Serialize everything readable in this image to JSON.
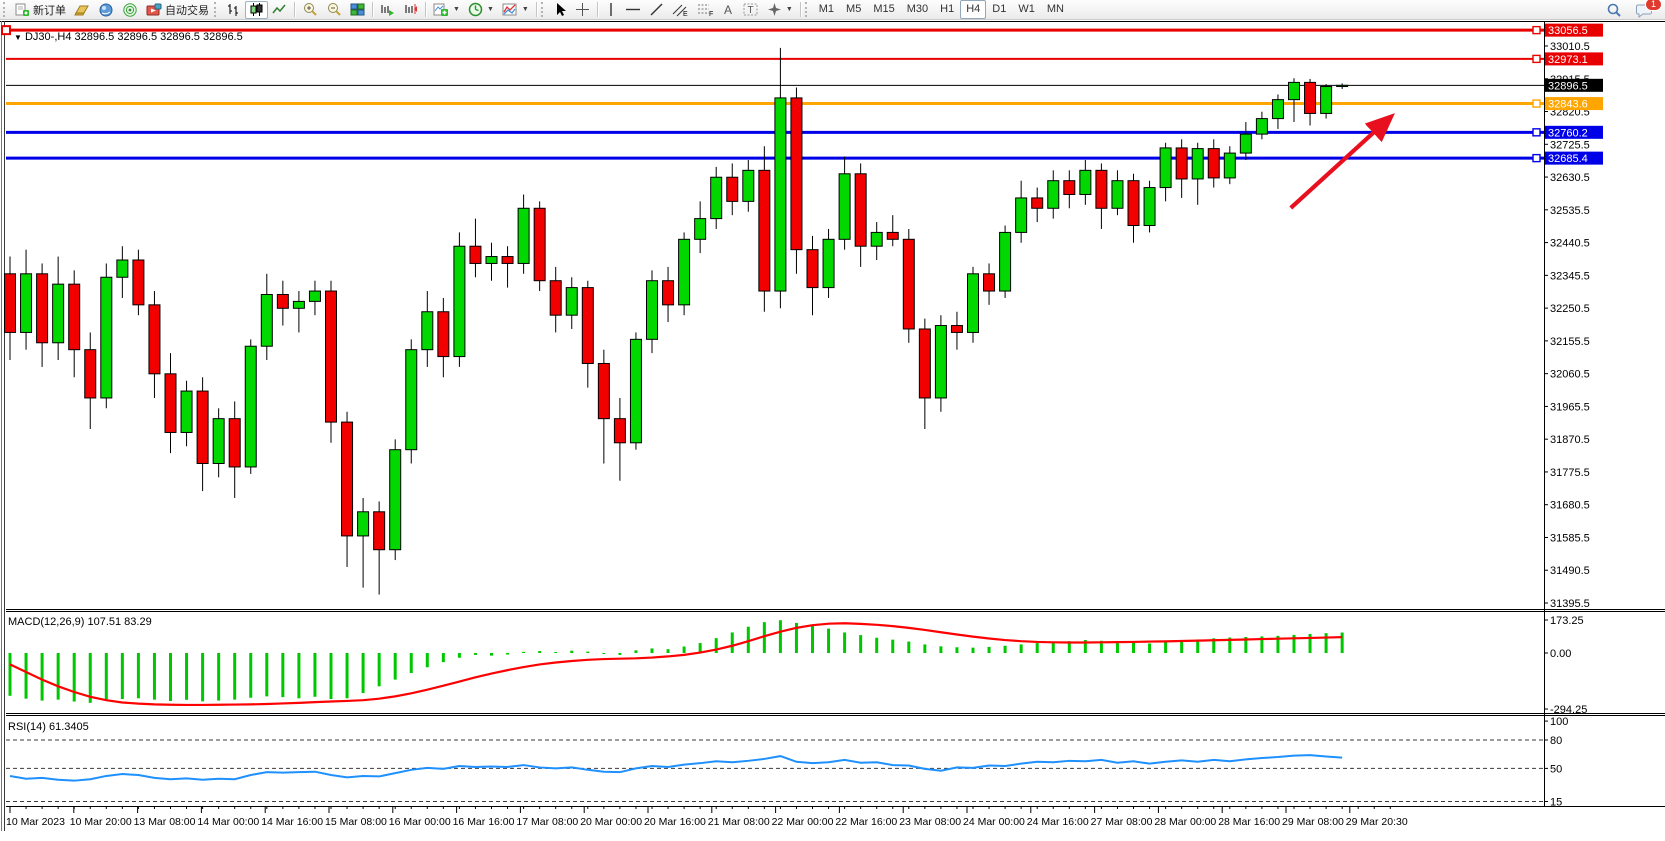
{
  "toolbar": {
    "new_order_label": "新订单",
    "auto_trading_label": "自动交易",
    "timeframes": [
      "M1",
      "M5",
      "M15",
      "M30",
      "H1",
      "H4",
      "D1",
      "W1",
      "MN"
    ],
    "active_timeframe": "H4",
    "notification_count": "1"
  },
  "chart": {
    "symbol_tf": "DJ30-,H4",
    "ohlc": "32896.5 32896.5 32896.5 32896.5",
    "dropdown_glyph": "▼"
  },
  "indicators": {
    "macd_label": "MACD(12,26,9) 107.51 83.29",
    "rsi_label": "RSI(14) 61.3405"
  },
  "chart_data": [
    {
      "type": "candlestick",
      "title": "DJ30- H4",
      "up_color": "#00D800",
      "down_color": "#F20000",
      "wick_color": "#000000",
      "y_ticks": [
        33010.5,
        32915.5,
        32820.5,
        32725.5,
        32630.5,
        32535.5,
        32440.5,
        32345.5,
        32250.5,
        32155.5,
        32060.5,
        31965.5,
        31870.5,
        31775.5,
        31680.5,
        31585.5,
        31490.5,
        31395.5
      ],
      "ylim": [
        31382,
        33080
      ],
      "price_lines": [
        {
          "price": 33056.5,
          "label": "33056.5",
          "color": "#E80000",
          "width": 3
        },
        {
          "price": 32973.1,
          "label": "32973.1",
          "color": "#E80000",
          "width": 2
        },
        {
          "price": 32896.5,
          "label": "32896.5",
          "color": "#000000",
          "width": 1,
          "current": true
        },
        {
          "price": 32843.6,
          "label": "32843.6",
          "color": "#FFA500",
          "width": 3
        },
        {
          "price": 32760.2,
          "label": "32760.2",
          "color": "#0000E8",
          "width": 3
        },
        {
          "price": 32685.4,
          "label": "32685.4",
          "color": "#0000E8",
          "width": 3
        }
      ],
      "candles": [
        [
          32350,
          32400,
          32100,
          32180
        ],
        [
          32180,
          32420,
          32130,
          32350
        ],
        [
          32350,
          32380,
          32080,
          32150
        ],
        [
          32150,
          32400,
          32100,
          32320
        ],
        [
          32320,
          32360,
          32050,
          32130
        ],
        [
          32130,
          32180,
          31900,
          31990
        ],
        [
          31990,
          32380,
          31960,
          32340
        ],
        [
          32340,
          32430,
          32280,
          32390
        ],
        [
          32390,
          32420,
          32230,
          32260
        ],
        [
          32260,
          32300,
          31990,
          32060
        ],
        [
          32060,
          32120,
          31830,
          31890
        ],
        [
          31890,
          32040,
          31850,
          32010
        ],
        [
          32010,
          32050,
          31720,
          31800
        ],
        [
          31800,
          31960,
          31760,
          31930
        ],
        [
          31930,
          31980,
          31700,
          31790
        ],
        [
          31790,
          32160,
          31770,
          32140
        ],
        [
          32140,
          32350,
          32100,
          32290
        ],
        [
          32290,
          32330,
          32200,
          32250
        ],
        [
          32250,
          32300,
          32180,
          32270
        ],
        [
          32270,
          32330,
          32230,
          32300
        ],
        [
          32300,
          32330,
          31860,
          31920
        ],
        [
          31920,
          31950,
          31500,
          31590
        ],
        [
          31590,
          31700,
          31440,
          31660
        ],
        [
          31660,
          31690,
          31420,
          31550
        ],
        [
          31550,
          31870,
          31520,
          31840
        ],
        [
          31840,
          32160,
          31800,
          32130
        ],
        [
          32130,
          32300,
          32080,
          32240
        ],
        [
          32240,
          32280,
          32050,
          32110
        ],
        [
          32110,
          32470,
          32080,
          32430
        ],
        [
          32430,
          32510,
          32340,
          32380
        ],
        [
          32380,
          32440,
          32330,
          32400
        ],
        [
          32400,
          32430,
          32310,
          32380
        ],
        [
          32380,
          32580,
          32350,
          32540
        ],
        [
          32540,
          32560,
          32300,
          32330
        ],
        [
          32330,
          32370,
          32180,
          32230
        ],
        [
          32230,
          32340,
          32190,
          32310
        ],
        [
          32310,
          32330,
          32020,
          32090
        ],
        [
          32090,
          32130,
          31800,
          31930
        ],
        [
          31930,
          31990,
          31750,
          31860
        ],
        [
          31860,
          32180,
          31840,
          32160
        ],
        [
          32160,
          32360,
          32120,
          32330
        ],
        [
          32330,
          32370,
          32210,
          32260
        ],
        [
          32260,
          32470,
          32230,
          32450
        ],
        [
          32450,
          32560,
          32410,
          32510
        ],
        [
          32510,
          32660,
          32480,
          32630
        ],
        [
          32630,
          32670,
          32520,
          32560
        ],
        [
          32560,
          32680,
          32530,
          32650
        ],
        [
          32650,
          32720,
          32240,
          32300
        ],
        [
          32300,
          33005,
          32250,
          32860
        ],
        [
          32860,
          32890,
          32350,
          32420
        ],
        [
          32420,
          32460,
          32230,
          32310
        ],
        [
          32310,
          32480,
          32280,
          32450
        ],
        [
          32450,
          32690,
          32420,
          32640
        ],
        [
          32640,
          32670,
          32370,
          32430
        ],
        [
          32430,
          32500,
          32390,
          32470
        ],
        [
          32470,
          32520,
          32430,
          32450
        ],
        [
          32450,
          32480,
          32150,
          32190
        ],
        [
          32190,
          32220,
          31900,
          31990
        ],
        [
          31990,
          32230,
          31950,
          32200
        ],
        [
          32200,
          32240,
          32130,
          32180
        ],
        [
          32180,
          32370,
          32150,
          32350
        ],
        [
          32350,
          32380,
          32260,
          32300
        ],
        [
          32300,
          32490,
          32280,
          32470
        ],
        [
          32470,
          32620,
          32440,
          32570
        ],
        [
          32570,
          32600,
          32500,
          32540
        ],
        [
          32540,
          32650,
          32510,
          32620
        ],
        [
          32620,
          32650,
          32540,
          32580
        ],
        [
          32580,
          32680,
          32550,
          32650
        ],
        [
          32650,
          32670,
          32480,
          32540
        ],
        [
          32540,
          32650,
          32520,
          32620
        ],
        [
          32620,
          32640,
          32440,
          32490
        ],
        [
          32490,
          32620,
          32470,
          32600
        ],
        [
          32600,
          32730,
          32560,
          32715
        ],
        [
          32715,
          32740,
          32570,
          32625
        ],
        [
          32625,
          32730,
          32550,
          32713
        ],
        [
          32713,
          32740,
          32600,
          32628
        ],
        [
          32628,
          32720,
          32610,
          32700
        ],
        [
          32700,
          32790,
          32680,
          32755
        ],
        [
          32755,
          32820,
          32740,
          32800
        ],
        [
          32800,
          32870,
          32770,
          32855
        ],
        [
          32855,
          32917,
          32790,
          32905
        ],
        [
          32905,
          32915,
          32780,
          32815
        ],
        [
          32815,
          32900,
          32800,
          32893
        ],
        [
          32893,
          32902,
          32886,
          32896.5
        ]
      ],
      "x_labels": [
        "10 Mar 2023",
        "10 Mar 20:00",
        "13 Mar 08:00",
        "14 Mar 00:00",
        "14 Mar 16:00",
        "15 Mar 08:00",
        "16 Mar 00:00",
        "16 Mar 16:00",
        "17 Mar 08:00",
        "20 Mar 00:00",
        "20 Mar 16:00",
        "21 Mar 08:00",
        "22 Mar 00:00",
        "22 Mar 16:00",
        "23 Mar 08:00",
        "24 Mar 00:00",
        "24 Mar 16:00",
        "27 Mar 08:00",
        "28 Mar 00:00",
        "28 Mar 16:00",
        "29 Mar 08:00",
        "29 Mar 20:30"
      ],
      "annotation_arrow": {
        "from_bar": 79.8,
        "from_price": 32541,
        "to_bar": 86.4,
        "to_price": 32817,
        "color": "#E8101E"
      }
    },
    {
      "type": "histogram+line",
      "title": "MACD",
      "hist_color": "#00C800",
      "signal_color": "#FF0000",
      "y_ticks": [
        173.25,
        0.0,
        -294.25
      ],
      "hist": [
        -225,
        -240,
        -250,
        -245,
        -255,
        -262,
        -252,
        -242,
        -238,
        -245,
        -252,
        -246,
        -254,
        -250,
        -245,
        -235,
        -228,
        -232,
        -238,
        -230,
        -242,
        -238,
        -210,
        -175,
        -140,
        -105,
        -75,
        -48,
        -25,
        -10,
        -14,
        -8,
        6,
        10,
        5,
        12,
        7,
        -4,
        -10,
        14,
        24,
        20,
        34,
        52,
        78,
        108,
        138,
        162,
        172,
        158,
        148,
        128,
        108,
        94,
        80,
        70,
        60,
        45,
        35,
        30,
        28,
        32,
        38,
        45,
        52,
        58,
        62,
        68,
        64,
        60,
        55,
        50,
        57,
        64,
        71,
        77,
        81,
        84,
        87,
        90,
        95,
        100,
        104,
        107.5
      ],
      "signal": [
        -60,
        -100,
        -140,
        -175,
        -205,
        -230,
        -248,
        -260,
        -266,
        -270,
        -272,
        -273,
        -273,
        -272,
        -271,
        -270,
        -268,
        -265,
        -262,
        -258,
        -255,
        -252,
        -248,
        -240,
        -228,
        -212,
        -193,
        -172,
        -150,
        -128,
        -108,
        -90,
        -74,
        -60,
        -50,
        -42,
        -36,
        -32,
        -30,
        -28,
        -24,
        -18,
        -10,
        2,
        18,
        38,
        62,
        88,
        112,
        132,
        146,
        154,
        156,
        153,
        148,
        141,
        132,
        121,
        109,
        97,
        86,
        76,
        68,
        62,
        58,
        56,
        55,
        55,
        56,
        57,
        58,
        60,
        61,
        63,
        65,
        67,
        69,
        71,
        73,
        75,
        77,
        79,
        81,
        83.29
      ]
    },
    {
      "type": "line",
      "title": "RSI",
      "line_color": "#1E90FF",
      "y_ticks": [
        100,
        80,
        50,
        15
      ],
      "levels": [
        80,
        50,
        15
      ],
      "values": [
        42,
        39,
        40,
        38,
        37,
        38.5,
        42,
        44,
        43,
        40,
        38.5,
        39.5,
        38,
        39,
        38.5,
        43,
        46,
        45.5,
        46,
        46.5,
        43,
        40.5,
        42,
        41.5,
        45,
        48.5,
        50.5,
        49.5,
        52.5,
        51.5,
        52,
        51.5,
        53.5,
        51,
        50,
        51,
        48.5,
        46.5,
        46,
        50,
        52.5,
        51.5,
        54,
        55.5,
        57.5,
        56.5,
        58,
        60,
        63,
        57,
        55.5,
        56.5,
        59,
        56,
        56.5,
        53.5,
        53,
        49.5,
        47.5,
        51,
        50.5,
        53,
        52.5,
        55,
        57,
        56.5,
        58,
        57.5,
        59,
        56,
        57.5,
        55,
        57,
        58.5,
        57,
        59,
        57.5,
        59.5,
        61,
        62,
        63.5,
        64,
        62.5,
        61.34
      ]
    }
  ]
}
